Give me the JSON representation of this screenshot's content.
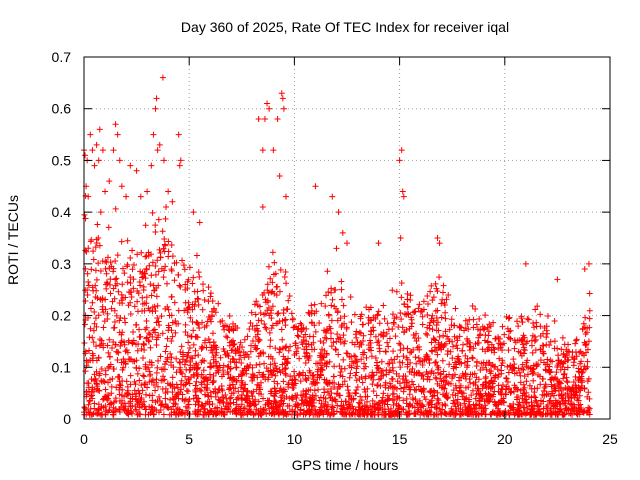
{
  "chart_data": {
    "type": "scatter",
    "title": "Day 360 of 2025, Rate Of TEC Index for receiver iqal",
    "xlabel": "GPS time / hours",
    "ylabel": "ROTI / TECUs",
    "xlim": [
      0,
      25
    ],
    "ylim": [
      0,
      0.7
    ],
    "xticks": [
      0,
      5,
      10,
      15,
      20,
      25
    ],
    "xtick_labels": [
      "0",
      "5",
      "10",
      "15",
      "20",
      "25"
    ],
    "yticks": [
      0,
      0.1,
      0.2,
      0.3,
      0.4,
      0.5,
      0.6,
      0.7
    ],
    "ytick_labels": [
      "0",
      "0.1",
      "0.2",
      "0.3",
      "0.4",
      "0.5",
      "0.6",
      "0.7"
    ],
    "grid": true,
    "marker": "+",
    "color": "#ff0000",
    "series": [
      {
        "name": "ROTI",
        "points": [
          [
            0.0,
            0.52
          ],
          [
            0.05,
            0.51
          ],
          [
            0.1,
            0.45
          ],
          [
            0.15,
            0.5
          ],
          [
            0.2,
            0.43
          ],
          [
            0.3,
            0.55
          ],
          [
            0.4,
            0.52
          ],
          [
            0.5,
            0.49
          ],
          [
            0.6,
            0.53
          ],
          [
            0.7,
            0.5
          ],
          [
            0.75,
            0.56
          ],
          [
            0.8,
            0.4
          ],
          [
            0.9,
            0.52
          ],
          [
            1.0,
            0.44
          ],
          [
            1.2,
            0.46
          ],
          [
            1.4,
            0.52
          ],
          [
            1.5,
            0.57
          ],
          [
            1.6,
            0.55
          ],
          [
            1.7,
            0.5
          ],
          [
            1.8,
            0.45
          ],
          [
            2.0,
            0.43
          ],
          [
            2.2,
            0.49
          ],
          [
            2.5,
            0.48
          ],
          [
            2.7,
            0.43
          ],
          [
            3.0,
            0.44
          ],
          [
            3.2,
            0.49
          ],
          [
            3.3,
            0.55
          ],
          [
            3.4,
            0.6
          ],
          [
            3.45,
            0.62
          ],
          [
            3.5,
            0.52
          ],
          [
            3.6,
            0.53
          ],
          [
            3.75,
            0.66
          ],
          [
            3.8,
            0.5
          ],
          [
            3.9,
            0.41
          ],
          [
            4.0,
            0.44
          ],
          [
            4.2,
            0.42
          ],
          [
            4.5,
            0.55
          ],
          [
            4.55,
            0.49
          ],
          [
            4.6,
            0.5
          ],
          [
            5.2,
            0.4
          ],
          [
            5.5,
            0.38
          ],
          [
            8.3,
            0.58
          ],
          [
            8.5,
            0.52
          ],
          [
            8.6,
            0.58
          ],
          [
            8.7,
            0.61
          ],
          [
            8.8,
            0.6
          ],
          [
            9.0,
            0.52
          ],
          [
            9.2,
            0.58
          ],
          [
            9.4,
            0.63
          ],
          [
            9.45,
            0.62
          ],
          [
            9.5,
            0.6
          ],
          [
            9.3,
            0.47
          ],
          [
            9.6,
            0.43
          ],
          [
            8.5,
            0.41
          ],
          [
            11.0,
            0.45
          ],
          [
            11.8,
            0.43
          ],
          [
            12.1,
            0.4
          ],
          [
            12.3,
            0.36
          ],
          [
            12.5,
            0.34
          ],
          [
            14.0,
            0.34
          ],
          [
            15.0,
            0.5
          ],
          [
            15.1,
            0.52
          ],
          [
            15.15,
            0.44
          ],
          [
            15.2,
            0.43
          ],
          [
            15.05,
            0.35
          ],
          [
            16.8,
            0.35
          ],
          [
            16.9,
            0.34
          ],
          [
            21.0,
            0.3
          ],
          [
            22.5,
            0.27
          ],
          [
            23.8,
            0.29
          ],
          [
            24.0,
            0.3
          ],
          [
            12.0,
            0.33
          ]
        ],
        "envelope": {
          "x": [
            0,
            0.5,
            1,
            1.5,
            2,
            2.5,
            3,
            3.5,
            4,
            4.5,
            5,
            5.5,
            6,
            6.5,
            7,
            7.5,
            8,
            8.5,
            9,
            9.5,
            10,
            10.5,
            11,
            11.5,
            12,
            12.5,
            13,
            13.5,
            14,
            14.5,
            15,
            15.5,
            16,
            16.5,
            17,
            17.5,
            18,
            18.5,
            19,
            19.5,
            20,
            20.5,
            21,
            21.5,
            22,
            22.5,
            23,
            23.5,
            24
          ],
          "y": [
            0.42,
            0.36,
            0.34,
            0.36,
            0.33,
            0.32,
            0.34,
            0.38,
            0.34,
            0.3,
            0.31,
            0.27,
            0.22,
            0.2,
            0.17,
            0.16,
            0.2,
            0.26,
            0.3,
            0.28,
            0.2,
            0.19,
            0.2,
            0.24,
            0.3,
            0.22,
            0.18,
            0.2,
            0.22,
            0.2,
            0.26,
            0.22,
            0.22,
            0.24,
            0.26,
            0.2,
            0.19,
            0.2,
            0.2,
            0.16,
            0.18,
            0.18,
            0.19,
            0.2,
            0.18,
            0.17,
            0.13,
            0.15,
            0.24
          ]
        }
      }
    ]
  }
}
